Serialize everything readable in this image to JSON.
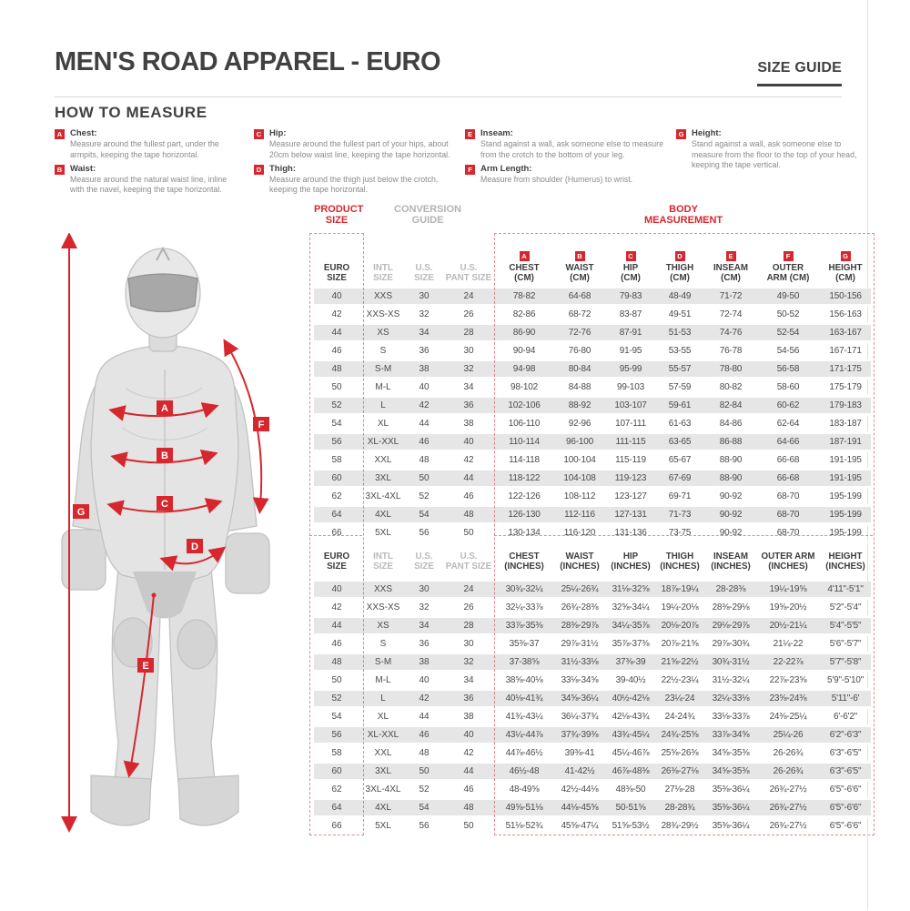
{
  "page": {
    "title": "MEN'S ROAD APPAREL - EURO",
    "size_guide_label": "SIZE GUIDE"
  },
  "colors": {
    "accent_red": "#d7272e",
    "heading_text": "#414141",
    "muted_gray": "#b5b5b5",
    "stripe_gray": "#e6e6e6",
    "value_text": "#4a4a4a"
  },
  "how_to_measure": {
    "heading": "HOW TO MEASURE",
    "items": [
      {
        "letter": "A",
        "label": "Chest:",
        "text": "Measure around the fullest part, under the armpits, keeping the tape horizontal.",
        "col": 0
      },
      {
        "letter": "B",
        "label": "Waist:",
        "text": "Measure around the natural waist line, inline with the navel, keeping the tape horizontal.",
        "col": 0
      },
      {
        "letter": "C",
        "label": "Hip:",
        "text": "Measure around the fullest part of your hips, about 20cm below waist line, keeping the tape horizontal.",
        "col": 1
      },
      {
        "letter": "D",
        "label": "Thigh:",
        "text": "Measure around the thigh just below the crotch, keeping the tape horizontal.",
        "col": 1
      },
      {
        "letter": "E",
        "label": "Inseam:",
        "text": "Stand against a wall, ask someone else to measure from the crotch to the bottom of your leg.",
        "col": 2
      },
      {
        "letter": "F",
        "label": "Arm Length:",
        "text": "Measure from shoulder (Humerus) to wrist.",
        "col": 2
      },
      {
        "letter": "G",
        "label": "Height:",
        "text": "Stand against a wall, ask someone else to measure from the floor to the top of your head, keeping the tape vertical.",
        "col": 3
      }
    ]
  },
  "figure": {
    "labels": [
      "A",
      "B",
      "C",
      "D",
      "E",
      "F",
      "G"
    ]
  },
  "table": {
    "group_headers": {
      "product_size": "PRODUCT\nSIZE",
      "conversion_guide": "CONVERSION\nGUIDE",
      "body_measurement": "BODY\nMEASUREMENT"
    },
    "columns_cm": [
      {
        "label": "EURO\nSIZE"
      },
      {
        "label": "INTL\nSIZE",
        "muted": true
      },
      {
        "label": "U.S.\nSIZE",
        "muted": true
      },
      {
        "label": "U.S.\nPANT SIZE",
        "muted": true
      },
      {
        "letter": "A",
        "label": "CHEST\n(CM)"
      },
      {
        "letter": "B",
        "label": "WAIST\n(CM)"
      },
      {
        "letter": "C",
        "label": "HIP\n(CM)"
      },
      {
        "letter": "D",
        "label": "THIGH\n(CM)"
      },
      {
        "letter": "E",
        "label": "INSEAM\n(CM)"
      },
      {
        "letter": "F",
        "label": "OUTER\nARM (CM)"
      },
      {
        "letter": "G",
        "label": "HEIGHT\n(CM)"
      }
    ],
    "columns_in": [
      {
        "label": "EURO\nSIZE"
      },
      {
        "label": "INTL\nSIZE",
        "muted": true
      },
      {
        "label": "U.S.\nSIZE",
        "muted": true
      },
      {
        "label": "U.S.\nPANT SIZE",
        "muted": true
      },
      {
        "label": "CHEST\n(INCHES)"
      },
      {
        "label": "WAIST\n(INCHES)"
      },
      {
        "label": "HIP\n(INCHES)"
      },
      {
        "label": "THIGH\n(INCHES)"
      },
      {
        "label": "INSEAM\n(INCHES)"
      },
      {
        "label": "OUTER ARM\n(INCHES)"
      },
      {
        "label": "HEIGHT\n(INCHES)"
      }
    ],
    "rows_cm": [
      [
        "40",
        "XXS",
        "30",
        "24",
        "78-82",
        "64-68",
        "79-83",
        "48-49",
        "71-72",
        "49-50",
        "150-156"
      ],
      [
        "42",
        "XXS-XS",
        "32",
        "26",
        "82-86",
        "68-72",
        "83-87",
        "49-51",
        "72-74",
        "50-52",
        "156-163"
      ],
      [
        "44",
        "XS",
        "34",
        "28",
        "86-90",
        "72-76",
        "87-91",
        "51-53",
        "74-76",
        "52-54",
        "163-167"
      ],
      [
        "46",
        "S",
        "36",
        "30",
        "90-94",
        "76-80",
        "91-95",
        "53-55",
        "76-78",
        "54-56",
        "167-171"
      ],
      [
        "48",
        "S-M",
        "38",
        "32",
        "94-98",
        "80-84",
        "95-99",
        "55-57",
        "78-80",
        "56-58",
        "171-175"
      ],
      [
        "50",
        "M-L",
        "40",
        "34",
        "98-102",
        "84-88",
        "99-103",
        "57-59",
        "80-82",
        "58-60",
        "175-179"
      ],
      [
        "52",
        "L",
        "42",
        "36",
        "102-106",
        "88-92",
        "103-107",
        "59-61",
        "82-84",
        "60-62",
        "179-183"
      ],
      [
        "54",
        "XL",
        "44",
        "38",
        "106-110",
        "92-96",
        "107-111",
        "61-63",
        "84-86",
        "62-64",
        "183-187"
      ],
      [
        "56",
        "XL-XXL",
        "46",
        "40",
        "110-114",
        "96-100",
        "111-115",
        "63-65",
        "86-88",
        "64-66",
        "187-191"
      ],
      [
        "58",
        "XXL",
        "48",
        "42",
        "114-118",
        "100-104",
        "115-119",
        "65-67",
        "88-90",
        "66-68",
        "191-195"
      ],
      [
        "60",
        "3XL",
        "50",
        "44",
        "118-122",
        "104-108",
        "119-123",
        "67-69",
        "88-90",
        "66-68",
        "191-195"
      ],
      [
        "62",
        "3XL-4XL",
        "52",
        "46",
        "122-126",
        "108-112",
        "123-127",
        "69-71",
        "90-92",
        "68-70",
        "195-199"
      ],
      [
        "64",
        "4XL",
        "54",
        "48",
        "126-130",
        "112-116",
        "127-131",
        "71-73",
        "90-92",
        "68-70",
        "195-199"
      ],
      [
        "66",
        "5XL",
        "56",
        "50",
        "130-134",
        "116-120",
        "131-136",
        "73-75",
        "90-92",
        "68-70",
        "195-199"
      ]
    ],
    "rows_in": [
      [
        "40",
        "XXS",
        "30",
        "24",
        "30¾-32¼",
        "25¼-26¾",
        "31⅛-32⅝",
        "18⅞-19¼",
        "28-28⅜",
        "19¼-19⅝",
        "4'11\"-5'1\""
      ],
      [
        "42",
        "XXS-XS",
        "32",
        "26",
        "32¼-33⅞",
        "26¾-28⅜",
        "32⅝-34¼",
        "19¼-20⅛",
        "28⅜-29⅛",
        "19⅝-20½",
        "5'2\"-5'4\""
      ],
      [
        "44",
        "XS",
        "34",
        "28",
        "33⅞-35⅜",
        "28⅜-29⅞",
        "34¼-35⅞",
        "20⅛-20⅞",
        "29⅛-29⅞",
        "20½-21¼",
        "5'4\"-5'5\""
      ],
      [
        "46",
        "S",
        "36",
        "30",
        "35⅜-37",
        "29⅞-31½",
        "35⅞-37⅜",
        "20⅞-21⅝",
        "29⅞-30¾",
        "21¼-22",
        "5'6\"-5'7\""
      ],
      [
        "48",
        "S-M",
        "38",
        "32",
        "37-38⅝",
        "31½-33⅛",
        "37⅜-39",
        "21⅝-22½",
        "30¾-31½",
        "22-22⅞",
        "5'7\"-5'8\""
      ],
      [
        "50",
        "M-L",
        "40",
        "34",
        "38⅝-40⅛",
        "33⅛-34⅝",
        "39-40½",
        "22½-23¼",
        "31½-32¼",
        "22⅞-23⅝",
        "5'9\"-5'10\""
      ],
      [
        "52",
        "L",
        "42",
        "36",
        "40⅛-41¾",
        "34⅝-36¼",
        "40½-42⅛",
        "23¼-24",
        "32¼-33⅛",
        "23⅝-24⅜",
        "5'11\"-6'"
      ],
      [
        "54",
        "XL",
        "44",
        "38",
        "41¾-43¼",
        "36¼-37¾",
        "42⅛-43¾",
        "24-24¾",
        "33⅛-33⅞",
        "24⅜-25¼",
        "6'-6'2\""
      ],
      [
        "56",
        "XL-XXL",
        "46",
        "40",
        "43¼-44⅞",
        "37¾-39⅜",
        "43¾-45¼",
        "24¾-25⅝",
        "33⅞-34⅝",
        "25¼-26",
        "6'2\"-6'3\""
      ],
      [
        "58",
        "XXL",
        "48",
        "42",
        "44⅞-46½",
        "39⅜-41",
        "45¼-46⅞",
        "25⅝-26⅜",
        "34⅝-35⅜",
        "26-26¾",
        "6'3\"-6'5\""
      ],
      [
        "60",
        "3XL",
        "50",
        "44",
        "46½-48",
        "41-42½",
        "46⅞-48⅜",
        "26⅜-27⅛",
        "34⅝-35⅜",
        "26-26¾",
        "6'3\"-6'5\""
      ],
      [
        "62",
        "3XL-4XL",
        "52",
        "46",
        "48-49⅝",
        "42½-44⅛",
        "48⅜-50",
        "27⅛-28",
        "35⅜-36¼",
        "26¾-27½",
        "6'5\"-6'6\""
      ],
      [
        "64",
        "4XL",
        "54",
        "48",
        "49⅝-51⅛",
        "44⅛-45⅝",
        "50-51⅝",
        "28-28¾",
        "35⅜-36¼",
        "26¾-27½",
        "6'5\"-6'6\""
      ],
      [
        "66",
        "5XL",
        "56",
        "50",
        "51⅛-52¾",
        "45⅝-47¼",
        "51⅝-53½",
        "28¾-29½",
        "35⅜-36¼",
        "26¾-27½",
        "6'5\"-6'6\""
      ]
    ]
  }
}
